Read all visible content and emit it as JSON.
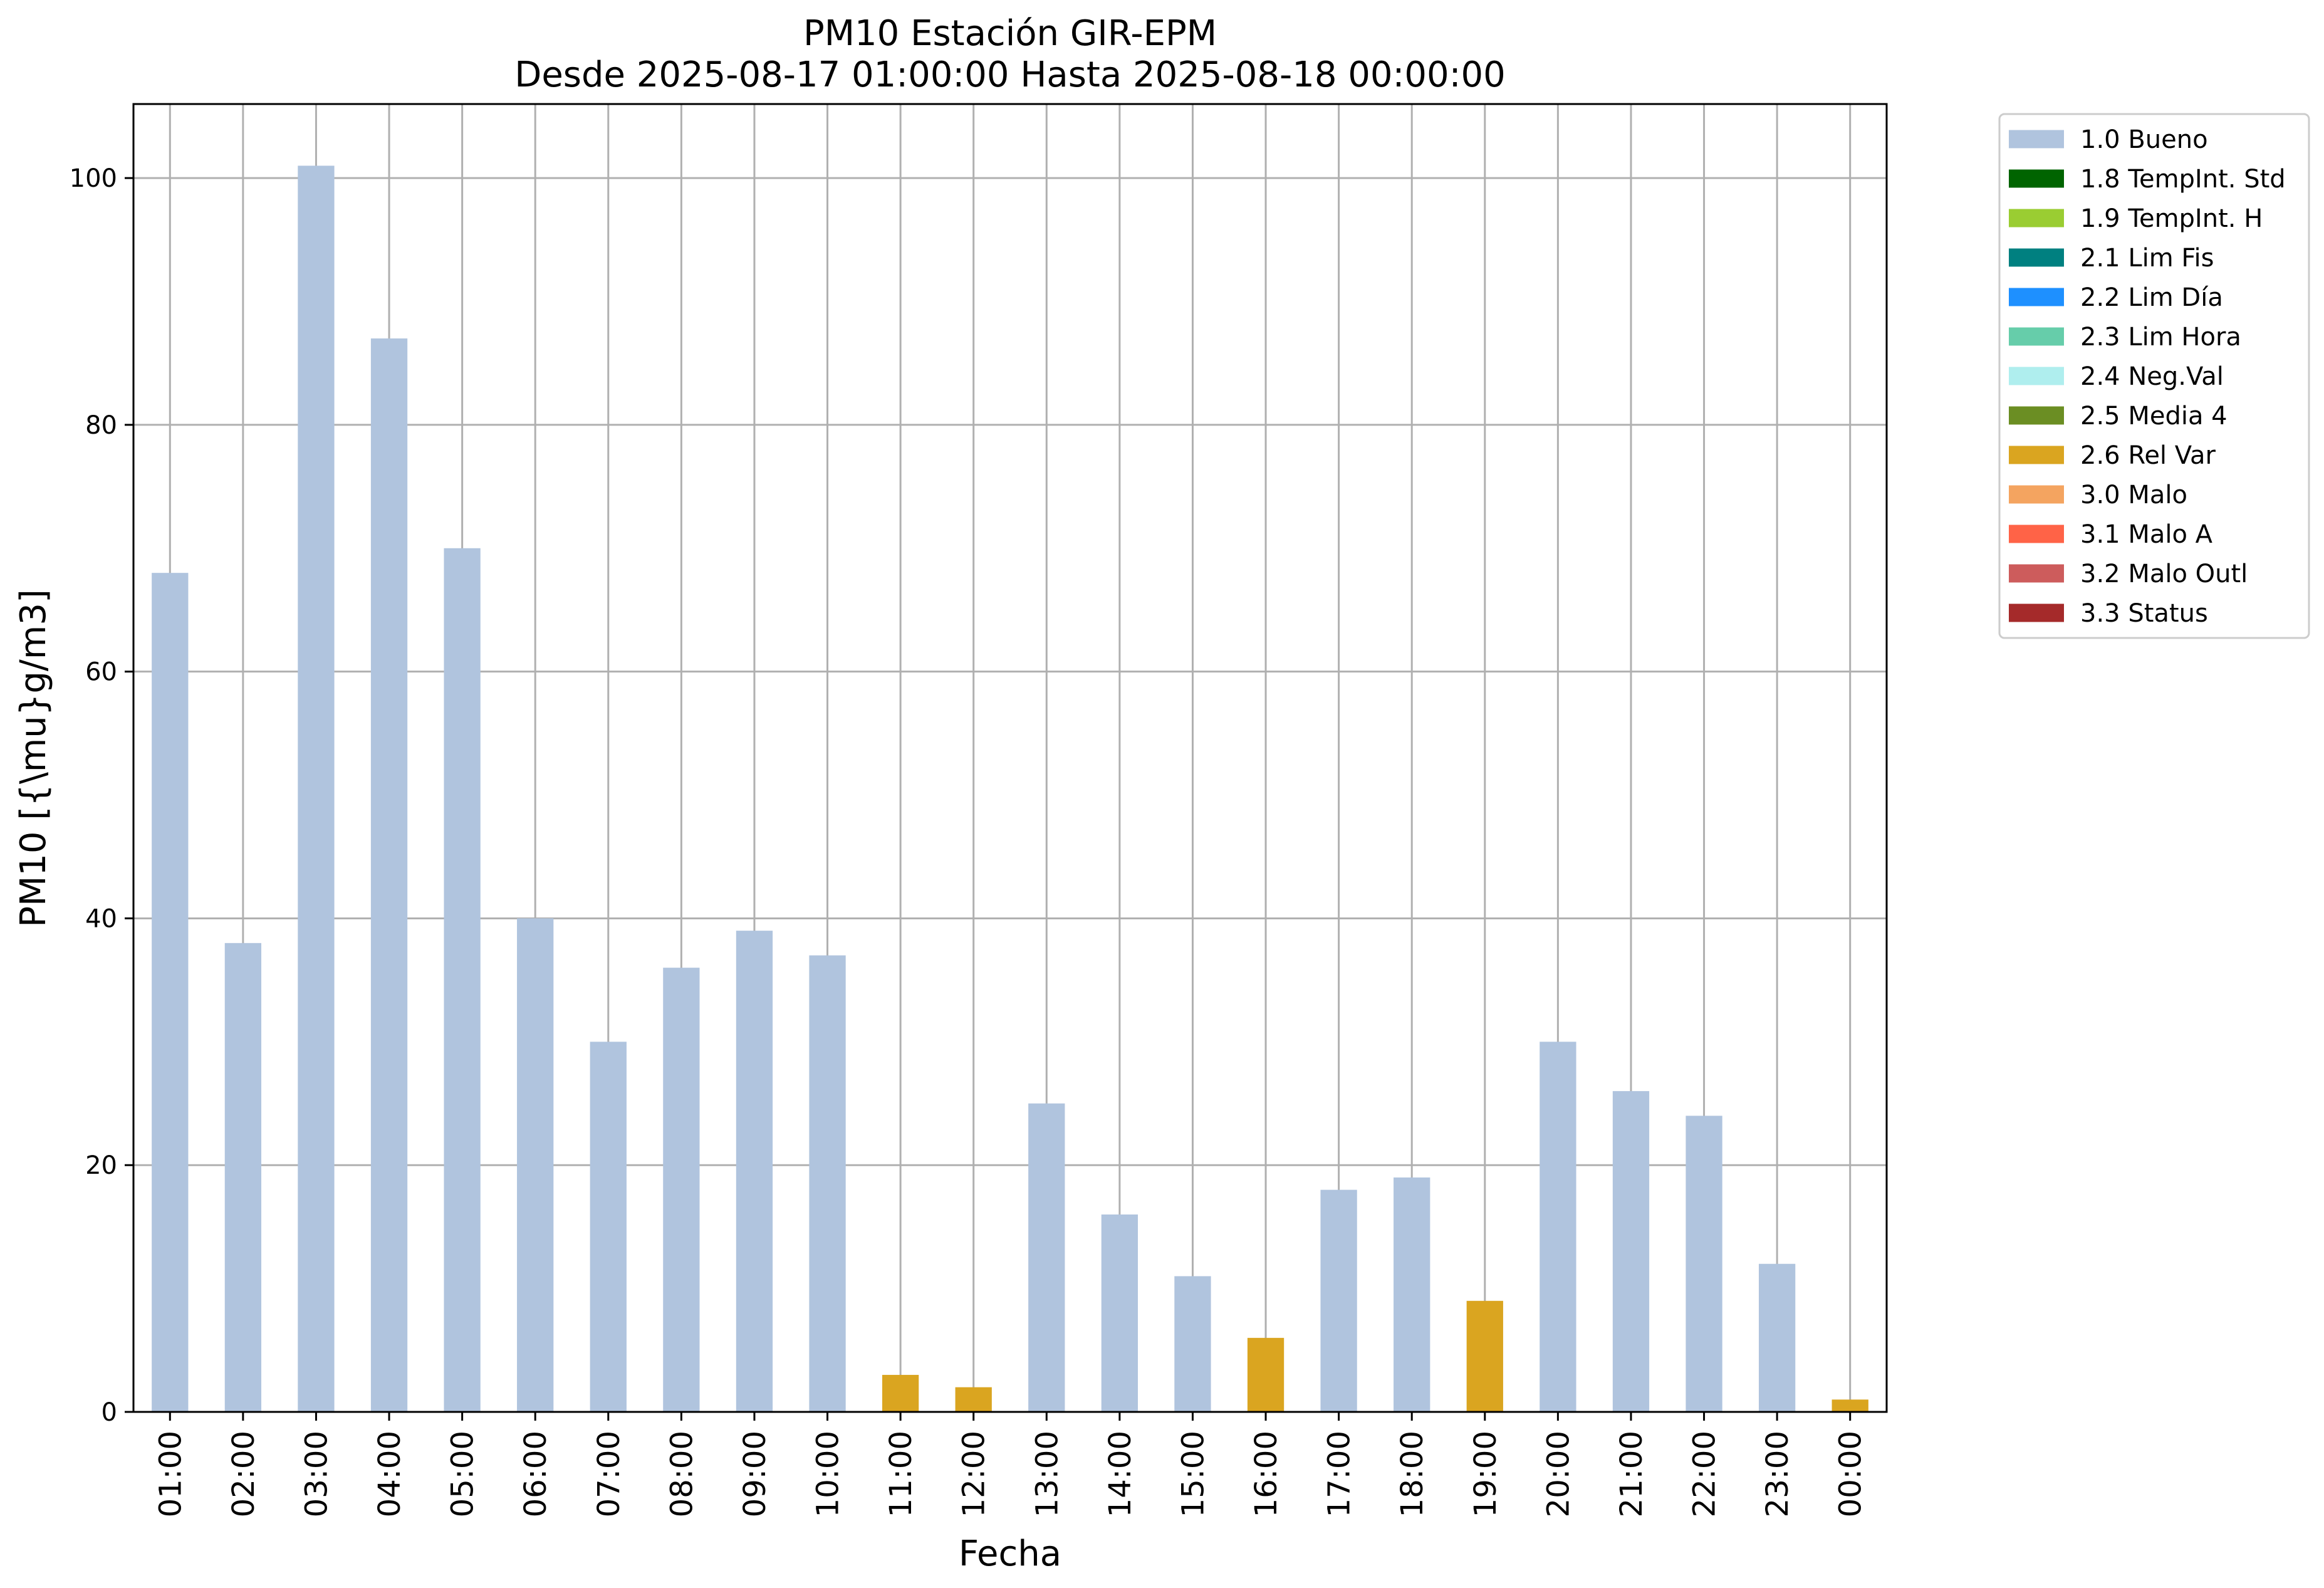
{
  "chart_data": {
    "type": "bar",
    "title": "PM10 Estación GIR-EPM",
    "subtitle": "Desde 2025-08-17 01:00:00 Hasta 2025-08-18 00:00:00",
    "xlabel": "Fecha",
    "ylabel": "PM10 [{\\mu}g/m3]",
    "ylim": [
      0,
      106
    ],
    "yticks": [
      0,
      20,
      40,
      60,
      80,
      100
    ],
    "grid": true,
    "legend_position": "outside-top-right",
    "categories": [
      "01:00",
      "02:00",
      "03:00",
      "04:00",
      "05:00",
      "06:00",
      "07:00",
      "08:00",
      "09:00",
      "10:00",
      "11:00",
      "12:00",
      "13:00",
      "14:00",
      "15:00",
      "16:00",
      "17:00",
      "18:00",
      "19:00",
      "20:00",
      "21:00",
      "22:00",
      "23:00",
      "00:00"
    ],
    "values": [
      68,
      38,
      101,
      87,
      70,
      40,
      30,
      36,
      39,
      37,
      3,
      2,
      25,
      16,
      11,
      6,
      18,
      19,
      9,
      30,
      26,
      24,
      12,
      1
    ],
    "bar_flags": [
      "1.0 Bueno",
      "1.0 Bueno",
      "1.0 Bueno",
      "1.0 Bueno",
      "1.0 Bueno",
      "1.0 Bueno",
      "1.0 Bueno",
      "1.0 Bueno",
      "1.0 Bueno",
      "1.0 Bueno",
      "2.6 Rel Var",
      "2.6 Rel Var",
      "1.0 Bueno",
      "1.0 Bueno",
      "1.0 Bueno",
      "2.6 Rel Var",
      "1.0 Bueno",
      "1.0 Bueno",
      "2.6 Rel Var",
      "1.0 Bueno",
      "1.0 Bueno",
      "1.0 Bueno",
      "1.0 Bueno",
      "2.6 Rel Var"
    ],
    "legend": [
      {
        "label": "1.0 Bueno",
        "color": "#b0c4de"
      },
      {
        "label": "1.8 TempInt. Std",
        "color": "#006400"
      },
      {
        "label": "1.9 TempInt. H",
        "color": "#9acd32"
      },
      {
        "label": "2.1 Lim Fis",
        "color": "#008080"
      },
      {
        "label": "2.2 Lim Día",
        "color": "#1e90ff"
      },
      {
        "label": "2.3 Lim Hora",
        "color": "#66cdaa"
      },
      {
        "label": "2.4 Neg.Val",
        "color": "#afeeee"
      },
      {
        "label": "2.5 Media 4",
        "color": "#6b8e23"
      },
      {
        "label": "2.6 Rel Var",
        "color": "#daa520"
      },
      {
        "label": "3.0 Malo",
        "color": "#f4a460"
      },
      {
        "label": "3.1 Malo A",
        "color": "#ff6347"
      },
      {
        "label": "3.2 Malo Outl",
        "color": "#cd5c5c"
      },
      {
        "label": "3.3 Status",
        "color": "#a52a2a"
      }
    ]
  }
}
